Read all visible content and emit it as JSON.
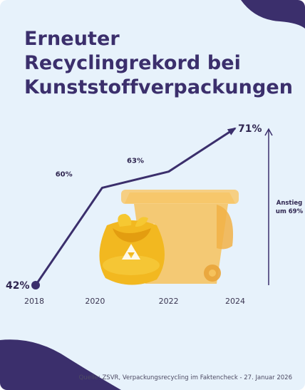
{
  "title": "Erneuter Recyclingrekord bei Kunststoffverpackungen",
  "source": "Quelle: ZSVR, Verpackungsrecycling im Faktencheck - 27. Januar 2026",
  "annotation": {
    "line1": "Anstieg",
    "line2": "um 69%"
  },
  "colors": {
    "background": "#e7f2fb",
    "accent": "#3b2f6c",
    "text": "#2f2650",
    "bin": "#f6c25c",
    "bag": "#f2b820"
  },
  "icons": [
    "yellow-bin-icon",
    "yellow-bag-icon",
    "recycling-symbol-icon"
  ],
  "chart_data": {
    "type": "line",
    "x": [
      2018,
      2019,
      2020,
      2021,
      2022,
      2023,
      2024
    ],
    "y": [
      42,
      null,
      60,
      null,
      63,
      null,
      71
    ],
    "point_labels": [
      {
        "x": 2018,
        "y": 42,
        "text": "42%"
      },
      {
        "x": 2019,
        "y": 60,
        "text": "60%"
      },
      {
        "x": 2021,
        "y": 63,
        "text": "63%"
      },
      {
        "x": 2024,
        "y": 71,
        "text": "71%"
      }
    ],
    "x_ticks": [
      "2018",
      "2020",
      "2022",
      "2024"
    ],
    "unit": "%",
    "grid": false,
    "legend": "none"
  }
}
